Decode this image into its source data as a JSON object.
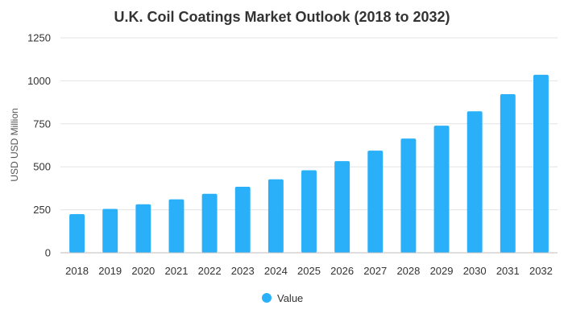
{
  "chart_data": {
    "type": "bar",
    "title": "U.K. Coil Coatings Market Outlook (2018 to 2032)",
    "ylabel": "USD USD Million",
    "xlabel": "",
    "categories": [
      "2018",
      "2019",
      "2020",
      "2021",
      "2022",
      "2023",
      "2024",
      "2025",
      "2026",
      "2027",
      "2028",
      "2029",
      "2030",
      "2031",
      "2032"
    ],
    "series": [
      {
        "name": "Value",
        "color": "#29b0f9",
        "values": [
          225,
          255,
          282,
          311,
          343,
          384,
          427,
          480,
          533,
          594,
          664,
          739,
          823,
          922,
          1035
        ]
      }
    ],
    "ylim": [
      0,
      1250
    ],
    "yticks": [
      0,
      250,
      500,
      750,
      1000,
      1250
    ],
    "grid": true,
    "legend": "bottom-center"
  }
}
